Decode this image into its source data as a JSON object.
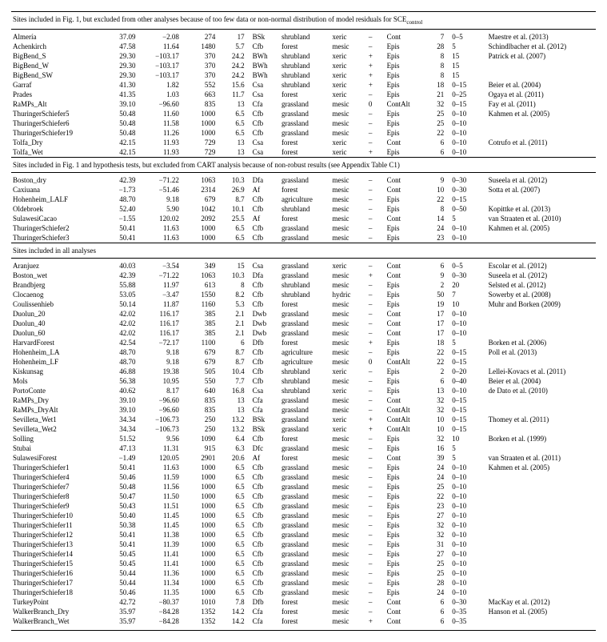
{
  "table": {
    "columns": {
      "widths_pct": [
        13,
        5,
        6,
        5,
        4,
        4,
        7,
        5,
        2.5,
        5,
        4,
        5,
        15
      ]
    },
    "sections": [
      {
        "header_html": "Sites included in Fig. 1, but excluded from other analyses because of too few data or non-normal distribution of model residuals for SCE<sub>control</sub>",
        "rows": [
          [
            "Almería",
            "37.09",
            "−2.08",
            "274",
            "17",
            "BSk",
            "shrubland",
            "xeric",
            "–",
            "Cont",
            "7",
            "0–5",
            "Maestre et al. (2013)"
          ],
          [
            "Achenkirch",
            "47.58",
            "11.64",
            "1480",
            "5.7",
            "Cfb",
            "forest",
            "mesic",
            "–",
            "Epis",
            "28",
            "5",
            "Schindlbacher et al. (2012)"
          ],
          [
            "BigBend_S",
            "29.30",
            "−103.17",
            "370",
            "24.2",
            "BWh",
            "shrubland",
            "xeric",
            "+",
            "Epis",
            "8",
            "15",
            "Patrick et al. (2007)"
          ],
          [
            "BigBend_W",
            "29.30",
            "−103.17",
            "370",
            "24.2",
            "BWh",
            "shrubland",
            "xeric",
            "+",
            "Epis",
            "8",
            "15",
            ""
          ],
          [
            "BigBend_SW",
            "29.30",
            "−103.17",
            "370",
            "24.2",
            "BWh",
            "shrubland",
            "xeric",
            "+",
            "Epis",
            "8",
            "15",
            ""
          ],
          [
            "Garraf",
            "41.30",
            "1.82",
            "552",
            "15.6",
            "Csa",
            "shrubland",
            "xeric",
            "+",
            "Epis",
            "18",
            "0–15",
            "Beier et al. (2004)"
          ],
          [
            "Prades",
            "41.35",
            "1.03",
            "663",
            "11.7",
            "Csa",
            "forest",
            "xeric",
            "–",
            "Epis",
            "21",
            "0–25",
            "Ogaya et al. (2011)"
          ],
          [
            "RaMPs_Alt",
            "39.10",
            "−96.60",
            "835",
            "13",
            "Cfa",
            "grassland",
            "mesic",
            "0",
            "ContAlt",
            "32",
            "0–15",
            "Fay et al. (2011)"
          ],
          [
            "ThuringerSchiefer5",
            "50.48",
            "11.60",
            "1000",
            "6.5",
            "Cfb",
            "grassland",
            "mesic",
            "–",
            "Epis",
            "25",
            "0–10",
            "Kahmen et al. (2005)"
          ],
          [
            "ThuringerSchiefer6",
            "50.48",
            "11.58",
            "1000",
            "6.5",
            "Cfb",
            "grassland",
            "mesic",
            "–",
            "Epis",
            "25",
            "0–10",
            ""
          ],
          [
            "ThuringerSchiefer19",
            "50.48",
            "11.26",
            "1000",
            "6.5",
            "Cfb",
            "grassland",
            "mesic",
            "–",
            "Epis",
            "22",
            "0–10",
            ""
          ],
          [
            "Tolfa_Dry",
            "42.15",
            "11.93",
            "729",
            "13",
            "Csa",
            "forest",
            "xeric",
            "–",
            "Cont",
            "6",
            "0–10",
            "Cotrufo et al. (2011)"
          ],
          [
            "Tolfa_Wet",
            "42.15",
            "11.93",
            "729",
            "13",
            "Csa",
            "forest",
            "xeric",
            "+",
            "Epis",
            "6",
            "0–10",
            ""
          ]
        ]
      },
      {
        "header_html": "Sites included in Fig. 1 and hypothesis tests, but excluded from CART analysis because of non-robust results (see Appendix Table C1)",
        "rows": [
          [
            "Boston_dry",
            "42.39",
            "−71.22",
            "1063",
            "10.3",
            "Dfa",
            "grassland",
            "mesic",
            "–",
            "Cont",
            "9",
            "0–30",
            "Suseela et al. (2012)"
          ],
          [
            "Caxiuana",
            "−1.73",
            "−51.46",
            "2314",
            "26.9",
            "Af",
            "forest",
            "mesic",
            "–",
            "Cont",
            "10",
            "0–30",
            "Sotta et al. (2007)"
          ],
          [
            "Hohenheim_LALF",
            "48.70",
            "9.18",
            "679",
            "8.7",
            "Cfb",
            "agriculture",
            "mesic",
            "–",
            "Epis",
            "22",
            "0–15",
            ""
          ],
          [
            "Oldebroek",
            "52.40",
            "5.90",
            "1042",
            "10.1",
            "Cfb",
            "shrubland",
            "mesic",
            "–",
            "Epis",
            "8",
            "0–50",
            "Kopittke et al. (2013)"
          ],
          [
            "SulawesiCacao",
            "−1.55",
            "120.02",
            "2092",
            "25.5",
            "Af",
            "forest",
            "mesic",
            "–",
            "Cont",
            "14",
            "5",
            "van Straaten et al. (2010)"
          ],
          [
            "ThuringerSchiefer2",
            "50.41",
            "11.63",
            "1000",
            "6.5",
            "Cfb",
            "grassland",
            "mesic",
            "–",
            "Epis",
            "24",
            "0–10",
            "Kahmen et al. (2005)"
          ],
          [
            "ThuringerSchiefer3",
            "50.41",
            "11.63",
            "1000",
            "6.5",
            "Cfb",
            "grassland",
            "mesic",
            "–",
            "Epis",
            "23",
            "0–10",
            ""
          ]
        ]
      },
      {
        "header_html": "Sites included in all analyses",
        "rows": [
          [
            "Aranjuez",
            "40.03",
            "−3.54",
            "349",
            "15",
            "Csa",
            "grassland",
            "xeric",
            "–",
            "Cont",
            "6",
            "0–5",
            "Escolar et al. (2012)"
          ],
          [
            "Boston_wet",
            "42.39",
            "−71.22",
            "1063",
            "10.3",
            "Dfa",
            "grassland",
            "mesic",
            "+",
            "Cont",
            "9",
            "0–30",
            "Suseela et al. (2012)"
          ],
          [
            "Brandbjerg",
            "55.88",
            "11.97",
            "613",
            "8",
            "Cfb",
            "shrubland",
            "mesic",
            "–",
            "Epis",
            "2",
            "20",
            "Selsted et al. (2012)"
          ],
          [
            "Clocaenog",
            "53.05",
            "−3.47",
            "1550",
            "8.2",
            "Cfb",
            "shrubland",
            "hydric",
            "–",
            "Epis",
            "50",
            "7",
            "Sowerby et al. (2008)"
          ],
          [
            "Coulissenhieb",
            "50.14",
            "11.87",
            "1160",
            "5.3",
            "Cfb",
            "forest",
            "mesic",
            "–",
            "Epis",
            "19",
            "10",
            "Muhr and Borken (2009)"
          ],
          [
            "Duolun_20",
            "42.02",
            "116.17",
            "385",
            "2.1",
            "Dwb",
            "grassland",
            "mesic",
            "–",
            "Cont",
            "17",
            "0–10",
            ""
          ],
          [
            "Duolun_40",
            "42.02",
            "116.17",
            "385",
            "2.1",
            "Dwb",
            "grassland",
            "mesic",
            "–",
            "Cont",
            "17",
            "0–10",
            ""
          ],
          [
            "Duolun_60",
            "42.02",
            "116.17",
            "385",
            "2.1",
            "Dwb",
            "grassland",
            "mesic",
            "–",
            "Cont",
            "17",
            "0–10",
            ""
          ],
          [
            "HarvardForest",
            "42.54",
            "−72.17",
            "1100",
            "6",
            "Dfb",
            "forest",
            "mesic",
            "+",
            "Epis",
            "18",
            "5",
            "Borken et al. (2006)"
          ],
          [
            "Hohenheim_LA",
            "48.70",
            "9.18",
            "679",
            "8.7",
            "Cfb",
            "agriculture",
            "mesic",
            "–",
            "Epis",
            "22",
            "0–15",
            "Poll et al. (2013)"
          ],
          [
            "Hohenheim_LF",
            "48.70",
            "9.18",
            "679",
            "8.7",
            "Cfb",
            "agriculture",
            "mesic",
            "0",
            "ContAlt",
            "22",
            "0–15",
            ""
          ],
          [
            "Kiskunsag",
            "46.88",
            "19.38",
            "505",
            "10.4",
            "Cfb",
            "shrubland",
            "xeric",
            "–",
            "Epis",
            "2",
            "0–20",
            "Lellei-Kovacs et al. (2011)"
          ],
          [
            "Mols",
            "56.38",
            "10.95",
            "550",
            "7.7",
            "Cfb",
            "shrubland",
            "mesic",
            "–",
            "Epis",
            "6",
            "0–40",
            "Beier et al. (2004)"
          ],
          [
            "PortoConte",
            "40.62",
            "8.17",
            "640",
            "16.8",
            "Csa",
            "shrubland",
            "xeric",
            "–",
            "Epis",
            "13",
            "0–10",
            "de Dato et al. (2010)"
          ],
          [
            "RaMPs_Dry",
            "39.10",
            "−96.60",
            "835",
            "13",
            "Cfa",
            "grassland",
            "mesic",
            "–",
            "Cont",
            "32",
            "0–15",
            ""
          ],
          [
            "RaMPs_DryAlt",
            "39.10",
            "−96.60",
            "835",
            "13",
            "Cfa",
            "grassland",
            "mesic",
            "–",
            "ContAlt",
            "32",
            "0–15",
            ""
          ],
          [
            "Sevilleta_Wet1",
            "34.34",
            "−106.73",
            "250",
            "13.2",
            "BSk",
            "grassland",
            "xeric",
            "+",
            "ContAlt",
            "10",
            "0–15",
            "Thomey et al. (2011)"
          ],
          [
            "Sevilleta_Wet2",
            "34.34",
            "−106.73",
            "250",
            "13.2",
            "BSk",
            "grassland",
            "xeric",
            "+",
            "ContAlt",
            "10",
            "0–15",
            ""
          ],
          [
            "Solling",
            "51.52",
            "9.56",
            "1090",
            "6.4",
            "Cfb",
            "forest",
            "mesic",
            "–",
            "Epis",
            "32",
            "10",
            "Borken et al. (1999)"
          ],
          [
            "Stubai",
            "47.13",
            "11.31",
            "915",
            "6.3",
            "Dfc",
            "grassland",
            "mesic",
            "–",
            "Epis",
            "16",
            "5",
            ""
          ],
          [
            "SulawesiForest",
            "−1.49",
            "120.05",
            "2901",
            "20.6",
            "Af",
            "forest",
            "mesic",
            "–",
            "Cont",
            "39",
            "5",
            "van Straaten et al. (2011)"
          ],
          [
            "ThuringerSchiefer1",
            "50.41",
            "11.63",
            "1000",
            "6.5",
            "Cfb",
            "grassland",
            "mesic",
            "–",
            "Epis",
            "24",
            "0–10",
            "Kahmen et al. (2005)"
          ],
          [
            "ThuringerSchiefer4",
            "50.46",
            "11.59",
            "1000",
            "6.5",
            "Cfb",
            "grassland",
            "mesic",
            "–",
            "Epis",
            "24",
            "0–10",
            ""
          ],
          [
            "ThuringerSchiefer7",
            "50.48",
            "11.56",
            "1000",
            "6.5",
            "Cfb",
            "grassland",
            "mesic",
            "–",
            "Epis",
            "25",
            "0–10",
            ""
          ],
          [
            "ThuringerSchiefer8",
            "50.47",
            "11.50",
            "1000",
            "6.5",
            "Cfb",
            "grassland",
            "mesic",
            "–",
            "Epis",
            "22",
            "0–10",
            ""
          ],
          [
            "ThuringerSchiefer9",
            "50.43",
            "11.51",
            "1000",
            "6.5",
            "Cfb",
            "grassland",
            "mesic",
            "–",
            "Epis",
            "23",
            "0–10",
            ""
          ],
          [
            "ThuringerSchiefer10",
            "50.40",
            "11.45",
            "1000",
            "6.5",
            "Cfb",
            "grassland",
            "mesic",
            "–",
            "Epis",
            "27",
            "0–10",
            ""
          ],
          [
            "ThuringerSchiefer11",
            "50.38",
            "11.45",
            "1000",
            "6.5",
            "Cfb",
            "grassland",
            "mesic",
            "–",
            "Epis",
            "32",
            "0–10",
            ""
          ],
          [
            "ThuringerSchiefer12",
            "50.41",
            "11.38",
            "1000",
            "6.5",
            "Cfb",
            "grassland",
            "mesic",
            "–",
            "Epis",
            "32",
            "0–10",
            ""
          ],
          [
            "ThuringerSchiefer13",
            "50.41",
            "11.39",
            "1000",
            "6.5",
            "Cfb",
            "grassland",
            "mesic",
            "–",
            "Epis",
            "31",
            "0–10",
            ""
          ],
          [
            "ThuringerSchiefer14",
            "50.45",
            "11.41",
            "1000",
            "6.5",
            "Cfb",
            "grassland",
            "mesic",
            "–",
            "Epis",
            "27",
            "0–10",
            ""
          ],
          [
            "ThuringerSchiefer15",
            "50.45",
            "11.41",
            "1000",
            "6.5",
            "Cfb",
            "grassland",
            "mesic",
            "–",
            "Epis",
            "25",
            "0–10",
            ""
          ],
          [
            "ThuringerSchiefer16",
            "50.44",
            "11.36",
            "1000",
            "6.5",
            "Cfb",
            "grassland",
            "mesic",
            "–",
            "Epis",
            "25",
            "0–10",
            ""
          ],
          [
            "ThuringerSchiefer17",
            "50.44",
            "11.34",
            "1000",
            "6.5",
            "Cfb",
            "grassland",
            "mesic",
            "–",
            "Epis",
            "28",
            "0–10",
            ""
          ],
          [
            "ThuringerSchiefer18",
            "50.46",
            "11.35",
            "1000",
            "6.5",
            "Cfb",
            "grassland",
            "mesic",
            "–",
            "Epis",
            "24",
            "0–10",
            ""
          ],
          [
            "TurkeyPoint",
            "42.72",
            "−80.37",
            "1010",
            "7.8",
            "Dfb",
            "forest",
            "mesic",
            "–",
            "Cont",
            "6",
            "0–30",
            "MacKay et al. (2012)"
          ],
          [
            "WalkerBranch_Dry",
            "35.97",
            "−84.28",
            "1352",
            "14.2",
            "Cfa",
            "forest",
            "mesic",
            "–",
            "Cont",
            "6",
            "0–35",
            "Hanson et al. (2005)"
          ],
          [
            "WalkerBranch_Wet",
            "35.97",
            "−84.28",
            "1352",
            "14.2",
            "Cfa",
            "forest",
            "mesic",
            "+",
            "Cont",
            "6",
            "0–35",
            ""
          ]
        ]
      }
    ]
  }
}
